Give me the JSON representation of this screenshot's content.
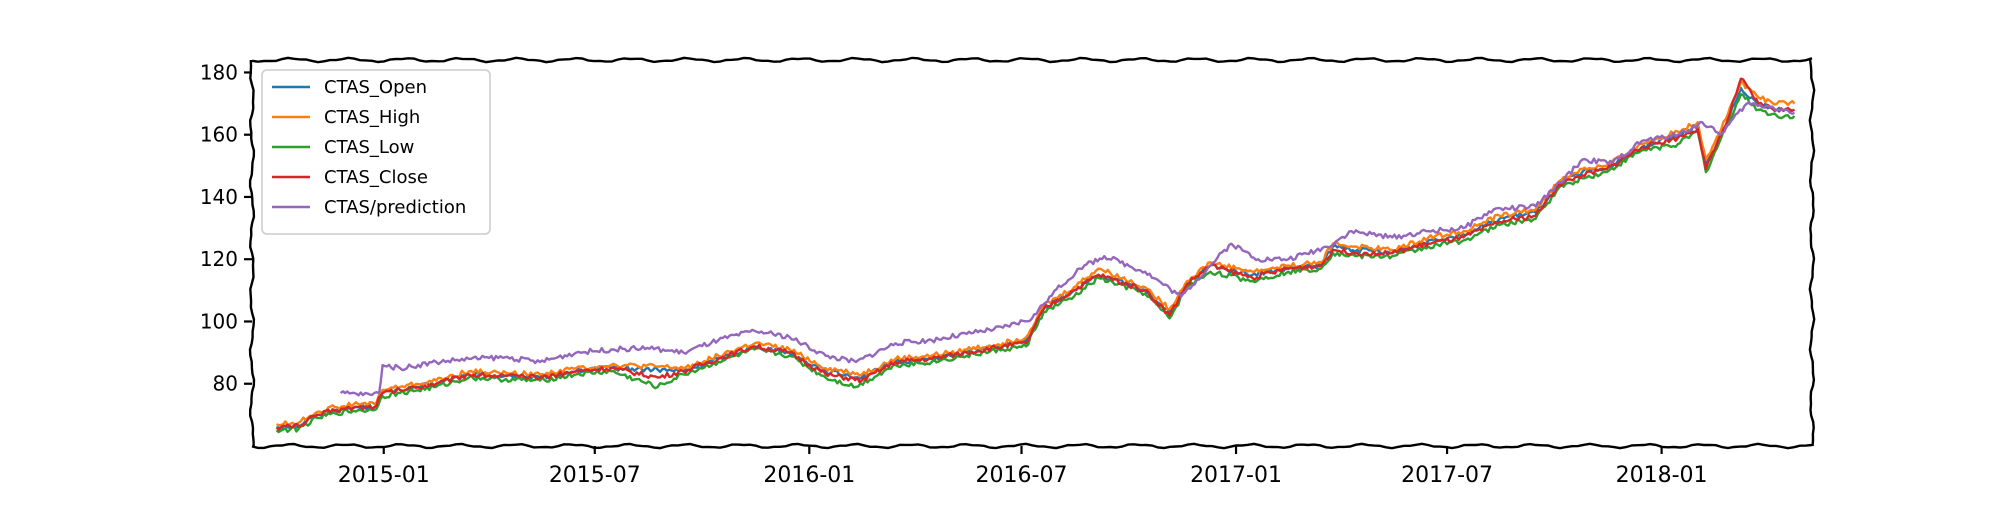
{
  "chart_data": {
    "type": "line",
    "title": "",
    "xlabel": "",
    "ylabel": "",
    "x_ticks": [
      "2015-01",
      "2015-07",
      "2016-01",
      "2016-07",
      "2017-01",
      "2017-07",
      "2018-01"
    ],
    "y_ticks": [
      80,
      100,
      120,
      140,
      160,
      180
    ],
    "xlim": [
      "2014-09-10",
      "2018-05-10"
    ],
    "ylim": [
      60,
      184
    ],
    "grid": false,
    "legend_position": "top-left",
    "style": "xkcd",
    "colors": {
      "CTAS_Open": "#1f77b4",
      "CTAS_High": "#ff7f0e",
      "CTAS_Low": "#2ca02c",
      "CTAS_Close": "#d62728",
      "CTAS/prediction": "#9467bd"
    },
    "series": [
      {
        "name": "CTAS_Open",
        "anchors": [
          [
            "2014-10-01",
            66
          ],
          [
            "2014-10-20",
            66.5
          ],
          [
            "2014-11-05",
            70
          ],
          [
            "2014-11-20",
            71.5
          ],
          [
            "2014-12-10",
            72.5
          ],
          [
            "2014-12-24",
            72.5
          ],
          [
            "2014-12-31",
            77
          ],
          [
            "2015-01-15",
            78
          ],
          [
            "2015-02-15",
            80
          ],
          [
            "2015-03-15",
            83
          ],
          [
            "2015-04-10",
            82.5
          ],
          [
            "2015-05-15",
            82
          ],
          [
            "2015-06-15",
            84
          ],
          [
            "2015-07-15",
            85
          ],
          [
            "2015-08-24",
            84.5
          ],
          [
            "2015-09-15",
            84
          ],
          [
            "2015-10-15",
            88
          ],
          [
            "2015-11-15",
            92
          ],
          [
            "2015-12-15",
            90
          ],
          [
            "2016-01-15",
            84
          ],
          [
            "2016-02-15",
            82
          ],
          [
            "2016-03-15",
            87
          ],
          [
            "2016-04-15",
            88
          ],
          [
            "2016-05-15",
            90
          ],
          [
            "2016-06-15",
            92
          ],
          [
            "2016-07-05",
            94
          ],
          [
            "2016-07-20",
            104
          ],
          [
            "2016-08-15",
            110
          ],
          [
            "2016-09-05",
            115
          ],
          [
            "2016-10-15",
            110
          ],
          [
            "2016-11-05",
            103
          ],
          [
            "2016-11-20",
            112
          ],
          [
            "2016-12-10",
            118
          ],
          [
            "2017-01-15",
            115
          ],
          [
            "2017-02-15",
            117
          ],
          [
            "2017-03-15",
            118
          ],
          [
            "2017-03-25",
            124
          ],
          [
            "2017-04-15",
            123
          ],
          [
            "2017-05-15",
            122
          ],
          [
            "2017-06-15",
            126
          ],
          [
            "2017-07-15",
            128
          ],
          [
            "2017-08-15",
            133
          ],
          [
            "2017-09-15",
            135
          ],
          [
            "2017-10-05",
            144
          ],
          [
            "2017-10-25",
            148
          ],
          [
            "2017-11-15",
            149
          ],
          [
            "2017-12-15",
            156
          ],
          [
            "2018-01-15",
            160
          ],
          [
            "2018-02-01",
            163
          ],
          [
            "2018-02-08",
            150
          ],
          [
            "2018-02-25",
            163
          ],
          [
            "2018-03-10",
            175
          ],
          [
            "2018-03-25",
            170
          ],
          [
            "2018-04-10",
            168
          ],
          [
            "2018-04-25",
            168
          ]
        ]
      },
      {
        "name": "CTAS_High",
        "anchors": [
          [
            "2014-10-01",
            67
          ],
          [
            "2014-10-20",
            67.5
          ],
          [
            "2014-11-05",
            71
          ],
          [
            "2014-11-20",
            72.5
          ],
          [
            "2014-12-10",
            73.5
          ],
          [
            "2014-12-24",
            73.5
          ],
          [
            "2014-12-31",
            78
          ],
          [
            "2015-01-15",
            79
          ],
          [
            "2015-02-15",
            81
          ],
          [
            "2015-03-15",
            84
          ],
          [
            "2015-04-10",
            83.5
          ],
          [
            "2015-05-15",
            83
          ],
          [
            "2015-06-15",
            85
          ],
          [
            "2015-07-15",
            86
          ],
          [
            "2015-08-24",
            85.5
          ],
          [
            "2015-09-15",
            85
          ],
          [
            "2015-10-15",
            89
          ],
          [
            "2015-11-15",
            93
          ],
          [
            "2015-12-15",
            91
          ],
          [
            "2016-01-15",
            85
          ],
          [
            "2016-02-15",
            83
          ],
          [
            "2016-03-15",
            88
          ],
          [
            "2016-04-15",
            89
          ],
          [
            "2016-05-15",
            91
          ],
          [
            "2016-06-15",
            93
          ],
          [
            "2016-07-05",
            95
          ],
          [
            "2016-07-20",
            105
          ],
          [
            "2016-08-15",
            111
          ],
          [
            "2016-09-05",
            117
          ],
          [
            "2016-10-15",
            111
          ],
          [
            "2016-11-05",
            104
          ],
          [
            "2016-11-20",
            113
          ],
          [
            "2016-12-10",
            119
          ],
          [
            "2017-01-15",
            116
          ],
          [
            "2017-02-15",
            118
          ],
          [
            "2017-03-15",
            119
          ],
          [
            "2017-03-25",
            125
          ],
          [
            "2017-04-15",
            124
          ],
          [
            "2017-05-15",
            123
          ],
          [
            "2017-06-15",
            127
          ],
          [
            "2017-07-15",
            129
          ],
          [
            "2017-08-15",
            134
          ],
          [
            "2017-09-15",
            136
          ],
          [
            "2017-10-05",
            145
          ],
          [
            "2017-10-25",
            149
          ],
          [
            "2017-11-15",
            150
          ],
          [
            "2017-12-15",
            157
          ],
          [
            "2018-01-15",
            161
          ],
          [
            "2018-02-01",
            164
          ],
          [
            "2018-02-08",
            152
          ],
          [
            "2018-02-25",
            165
          ],
          [
            "2018-03-10",
            177
          ],
          [
            "2018-03-25",
            172
          ],
          [
            "2018-04-10",
            170
          ],
          [
            "2018-04-25",
            170
          ]
        ]
      },
      {
        "name": "CTAS_Low",
        "anchors": [
          [
            "2014-10-01",
            65
          ],
          [
            "2014-10-20",
            65.5
          ],
          [
            "2014-11-05",
            69
          ],
          [
            "2014-11-20",
            70.5
          ],
          [
            "2014-12-10",
            71.5
          ],
          [
            "2014-12-24",
            71.5
          ],
          [
            "2014-12-31",
            76
          ],
          [
            "2015-01-15",
            77
          ],
          [
            "2015-02-15",
            79
          ],
          [
            "2015-03-15",
            82
          ],
          [
            "2015-04-10",
            81.5
          ],
          [
            "2015-05-15",
            81
          ],
          [
            "2015-06-15",
            83
          ],
          [
            "2015-07-15",
            84
          ],
          [
            "2015-08-24",
            79
          ],
          [
            "2015-09-15",
            83
          ],
          [
            "2015-10-15",
            87
          ],
          [
            "2015-11-15",
            91
          ],
          [
            "2015-12-15",
            89
          ],
          [
            "2016-01-15",
            82
          ],
          [
            "2016-02-10",
            79
          ],
          [
            "2016-03-15",
            86
          ],
          [
            "2016-04-15",
            87
          ],
          [
            "2016-05-15",
            89
          ],
          [
            "2016-06-15",
            91
          ],
          [
            "2016-07-05",
            92
          ],
          [
            "2016-07-20",
            103
          ],
          [
            "2016-08-15",
            108
          ],
          [
            "2016-09-05",
            114
          ],
          [
            "2016-10-15",
            109
          ],
          [
            "2016-11-05",
            101
          ],
          [
            "2016-11-20",
            111
          ],
          [
            "2016-12-10",
            116
          ],
          [
            "2017-01-15",
            113
          ],
          [
            "2017-02-15",
            116
          ],
          [
            "2017-03-15",
            117
          ],
          [
            "2017-03-25",
            122
          ],
          [
            "2017-04-15",
            121
          ],
          [
            "2017-05-15",
            121
          ],
          [
            "2017-06-15",
            124
          ],
          [
            "2017-07-15",
            126
          ],
          [
            "2017-08-15",
            131
          ],
          [
            "2017-09-15",
            133
          ],
          [
            "2017-10-05",
            143
          ],
          [
            "2017-10-25",
            146
          ],
          [
            "2017-11-15",
            148
          ],
          [
            "2017-12-15",
            155
          ],
          [
            "2018-01-15",
            157
          ],
          [
            "2018-02-01",
            161
          ],
          [
            "2018-02-08",
            148
          ],
          [
            "2018-02-25",
            162
          ],
          [
            "2018-03-10",
            173
          ],
          [
            "2018-03-25",
            168
          ],
          [
            "2018-04-10",
            166
          ],
          [
            "2018-04-25",
            166
          ]
        ]
      },
      {
        "name": "CTAS_Close",
        "anchors": [
          [
            "2014-10-01",
            66
          ],
          [
            "2014-10-20",
            66.5
          ],
          [
            "2014-11-05",
            70
          ],
          [
            "2014-11-20",
            71.5
          ],
          [
            "2014-12-10",
            72.5
          ],
          [
            "2014-12-24",
            72.5
          ],
          [
            "2014-12-31",
            77
          ],
          [
            "2015-01-15",
            78
          ],
          [
            "2015-02-15",
            80
          ],
          [
            "2015-03-15",
            83
          ],
          [
            "2015-04-10",
            82.5
          ],
          [
            "2015-05-15",
            82
          ],
          [
            "2015-06-15",
            84
          ],
          [
            "2015-07-15",
            85
          ],
          [
            "2015-08-24",
            82
          ],
          [
            "2015-09-15",
            84
          ],
          [
            "2015-10-15",
            88
          ],
          [
            "2015-11-15",
            92
          ],
          [
            "2015-12-15",
            90
          ],
          [
            "2016-01-15",
            83
          ],
          [
            "2016-02-15",
            81
          ],
          [
            "2016-03-15",
            87
          ],
          [
            "2016-04-15",
            88
          ],
          [
            "2016-05-15",
            90
          ],
          [
            "2016-06-15",
            92
          ],
          [
            "2016-07-05",
            93
          ],
          [
            "2016-07-20",
            104
          ],
          [
            "2016-08-15",
            110
          ],
          [
            "2016-09-05",
            115
          ],
          [
            "2016-10-15",
            110
          ],
          [
            "2016-11-05",
            102
          ],
          [
            "2016-11-20",
            112
          ],
          [
            "2016-12-10",
            118
          ],
          [
            "2017-01-15",
            114
          ],
          [
            "2017-02-15",
            117
          ],
          [
            "2017-03-15",
            118
          ],
          [
            "2017-03-25",
            123
          ],
          [
            "2017-04-15",
            122
          ],
          [
            "2017-05-15",
            122
          ],
          [
            "2017-06-15",
            125
          ],
          [
            "2017-07-15",
            127
          ],
          [
            "2017-08-15",
            132
          ],
          [
            "2017-09-15",
            134
          ],
          [
            "2017-10-05",
            144
          ],
          [
            "2017-10-25",
            147
          ],
          [
            "2017-11-15",
            149
          ],
          [
            "2017-12-15",
            156
          ],
          [
            "2018-01-15",
            159
          ],
          [
            "2018-02-01",
            162
          ],
          [
            "2018-02-08",
            149
          ],
          [
            "2018-02-25",
            163
          ],
          [
            "2018-03-10",
            178
          ],
          [
            "2018-03-25",
            170
          ],
          [
            "2018-04-10",
            168
          ],
          [
            "2018-04-25",
            168
          ]
        ]
      },
      {
        "name": "CTAS/prediction",
        "anchors": [
          [
            "2014-11-25",
            77
          ],
          [
            "2014-12-20",
            76.5
          ],
          [
            "2014-12-28",
            77
          ],
          [
            "2014-12-31",
            86
          ],
          [
            "2015-01-15",
            85
          ],
          [
            "2015-02-15",
            87
          ],
          [
            "2015-03-15",
            88
          ],
          [
            "2015-04-15",
            88.5
          ],
          [
            "2015-05-15",
            87
          ],
          [
            "2015-06-15",
            90
          ],
          [
            "2015-07-15",
            91
          ],
          [
            "2015-08-15",
            91.5
          ],
          [
            "2015-09-15",
            90
          ],
          [
            "2015-10-15",
            94
          ],
          [
            "2015-11-15",
            97
          ],
          [
            "2015-12-15",
            95
          ],
          [
            "2016-01-15",
            89
          ],
          [
            "2016-02-10",
            87
          ],
          [
            "2016-03-15",
            93
          ],
          [
            "2016-04-15",
            94
          ],
          [
            "2016-05-15",
            96
          ],
          [
            "2016-06-15",
            98
          ],
          [
            "2016-07-10",
            101
          ],
          [
            "2016-07-25",
            108
          ],
          [
            "2016-08-20",
            117
          ],
          [
            "2016-09-10",
            121
          ],
          [
            "2016-10-15",
            116
          ],
          [
            "2016-11-15",
            108
          ],
          [
            "2016-12-10",
            118
          ],
          [
            "2016-12-28",
            125
          ],
          [
            "2017-01-20",
            120
          ],
          [
            "2017-02-15",
            120
          ],
          [
            "2017-03-20",
            124
          ],
          [
            "2017-04-10",
            129
          ],
          [
            "2017-05-15",
            127
          ],
          [
            "2017-06-15",
            129
          ],
          [
            "2017-07-15",
            130
          ],
          [
            "2017-08-10",
            136
          ],
          [
            "2017-09-15",
            137
          ],
          [
            "2017-10-10",
            146
          ],
          [
            "2017-10-25",
            152
          ],
          [
            "2017-11-20",
            151
          ],
          [
            "2017-12-15",
            158
          ],
          [
            "2018-01-15",
            160
          ],
          [
            "2018-02-05",
            164
          ],
          [
            "2018-02-20",
            160
          ],
          [
            "2018-03-15",
            170
          ],
          [
            "2018-04-05",
            169
          ],
          [
            "2018-04-25",
            167
          ]
        ]
      }
    ]
  }
}
